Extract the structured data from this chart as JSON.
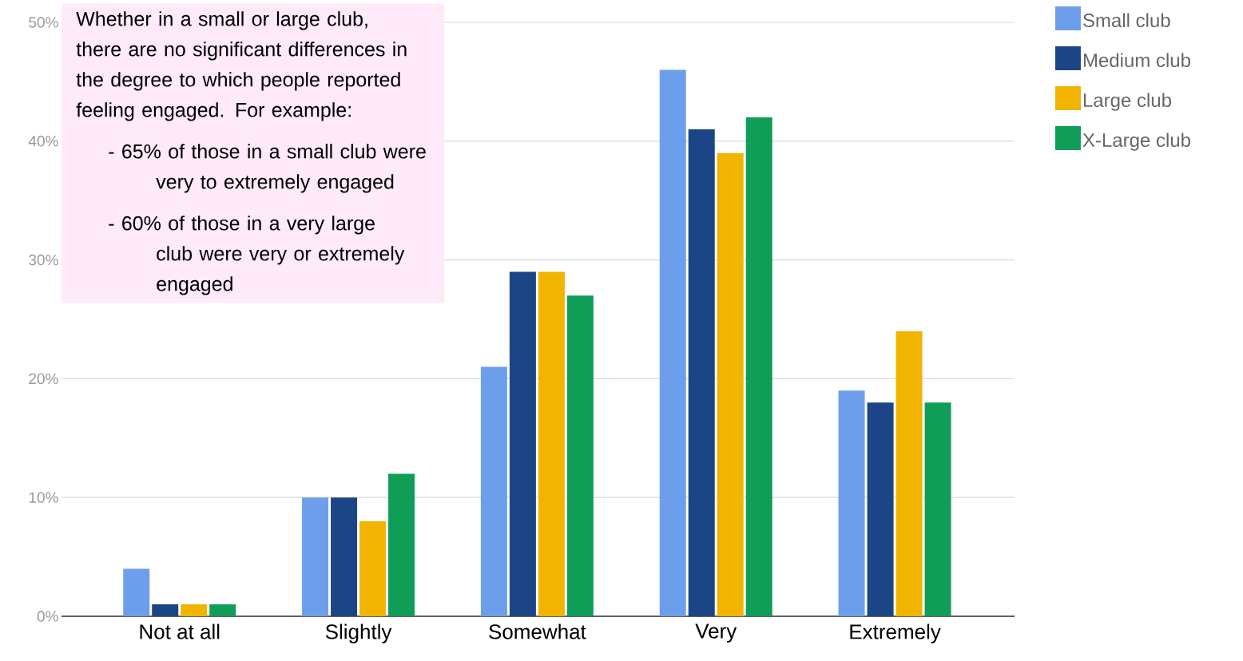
{
  "chart_data": {
    "type": "bar",
    "categories": [
      "Not at all",
      "Slightly",
      "Somewhat",
      "Very",
      "Extremely"
    ],
    "series": [
      {
        "name": "Small club",
        "color": "#6d9eeb",
        "values": [
          4,
          10,
          21,
          46,
          19
        ]
      },
      {
        "name": "Medium club",
        "color": "#1c4587",
        "values": [
          1,
          10,
          29,
          41,
          18
        ]
      },
      {
        "name": "Large club",
        "color": "#f1b400",
        "values": [
          1,
          8,
          29,
          39,
          24
        ]
      },
      {
        "name": "X-Large club",
        "color": "#0f9d58",
        "values": [
          1,
          12,
          27,
          42,
          18
        ]
      }
    ],
    "ylim": [
      0,
      50
    ],
    "yticks": [
      {
        "value": 0,
        "label": "0%"
      },
      {
        "value": 10,
        "label": "10%"
      },
      {
        "value": 20,
        "label": "20%"
      },
      {
        "value": 30,
        "label": "30%"
      },
      {
        "value": 40,
        "label": "40%"
      },
      {
        "value": 50,
        "label": "50%"
      }
    ],
    "grid": "y",
    "legend": "top right",
    "annotations": [
      "Whether in a small or large club, there are no significant differences in the degree to which people reported feeling engaged.  For example:",
      "- 65% of those in a small club were very to extremely engaged",
      "- 60% of those in a very large club were very or extremely engaged"
    ]
  }
}
